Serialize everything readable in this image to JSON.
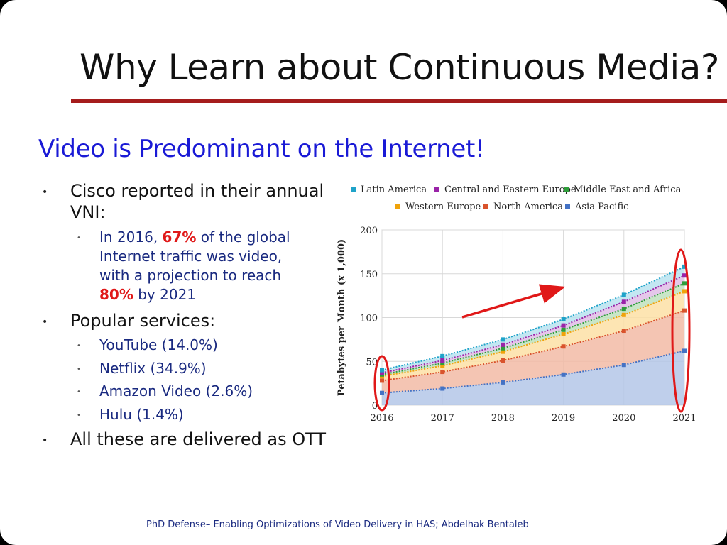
{
  "slide": {
    "title": "Why Learn about Continuous Media?",
    "subtitle": "Video is Predominant on the Internet!",
    "bullets": {
      "b1_line1": "Cisco reported in their annual",
      "b1_line2": "VNI:",
      "s1_l1_pre": "In 2016, ",
      "s1_l1_hl": "67%",
      "s1_l1_post": " of the global",
      "s1_l2": "Internet traffic was video,",
      "s1_l3": "with a projection to reach",
      "s1_l4_hl": "80%",
      "s1_l4_post": " by 2021",
      "b2": "Popular services:",
      "s2": "YouTube (14.0%)",
      "s3": "Netflix (34.9%)",
      "s4": "Amazon Video (2.6%)",
      "s5": "Hulu (1.4%)",
      "b3": "All these are delivered as OTT"
    },
    "footer": "PhD Defense– Enabling Optimizations of Video Delivery in HAS;   Abdelhak Bentaleb",
    "colors": {
      "title_rule": "#a51c1c",
      "subtitle": "#1a1ad6",
      "highlight": "#e01818",
      "annotation": "#e01818"
    }
  },
  "chart_data": {
    "type": "area",
    "stacked": true,
    "x": [
      2016,
      2017,
      2018,
      2019,
      2020,
      2021
    ],
    "ylabel": "Petabytes per Month (x 1,000)",
    "xlabel": "",
    "ylim": [
      0,
      200
    ],
    "yticks": [
      0,
      50,
      100,
      150,
      200
    ],
    "grid": true,
    "legend": "top",
    "series": [
      {
        "name": "Asia Pacific",
        "color": "#4472c4",
        "fill": "#b4c7e7",
        "values": [
          14,
          19,
          26,
          35,
          46,
          62
        ]
      },
      {
        "name": "North America",
        "color": "#d9532c",
        "fill": "#f2bba6",
        "values": [
          14,
          19,
          25,
          32,
          39,
          46
        ]
      },
      {
        "name": "Western Europe",
        "color": "#f0a30a",
        "fill": "#fde0a6",
        "values": [
          5,
          7,
          10,
          14,
          18,
          22
        ]
      },
      {
        "name": "Middle East and Africa",
        "color": "#2e9e3a",
        "fill": "#bfe2bd",
        "values": [
          2,
          3,
          4,
          5,
          7,
          9
        ]
      },
      {
        "name": "Central and Eastern Europe",
        "color": "#9a23a8",
        "fill": "#e0bde6",
        "values": [
          2,
          3,
          4,
          5,
          8,
          9
        ]
      },
      {
        "name": "Latin America",
        "color": "#1fa3c9",
        "fill": "#b9e3f0",
        "values": [
          3,
          5,
          6,
          7,
          8,
          10
        ]
      }
    ],
    "legend_order": [
      "Latin America",
      "Central and Eastern Europe",
      "Middle East and Africa",
      "Western Europe",
      "North America",
      "Asia Pacific"
    ]
  }
}
